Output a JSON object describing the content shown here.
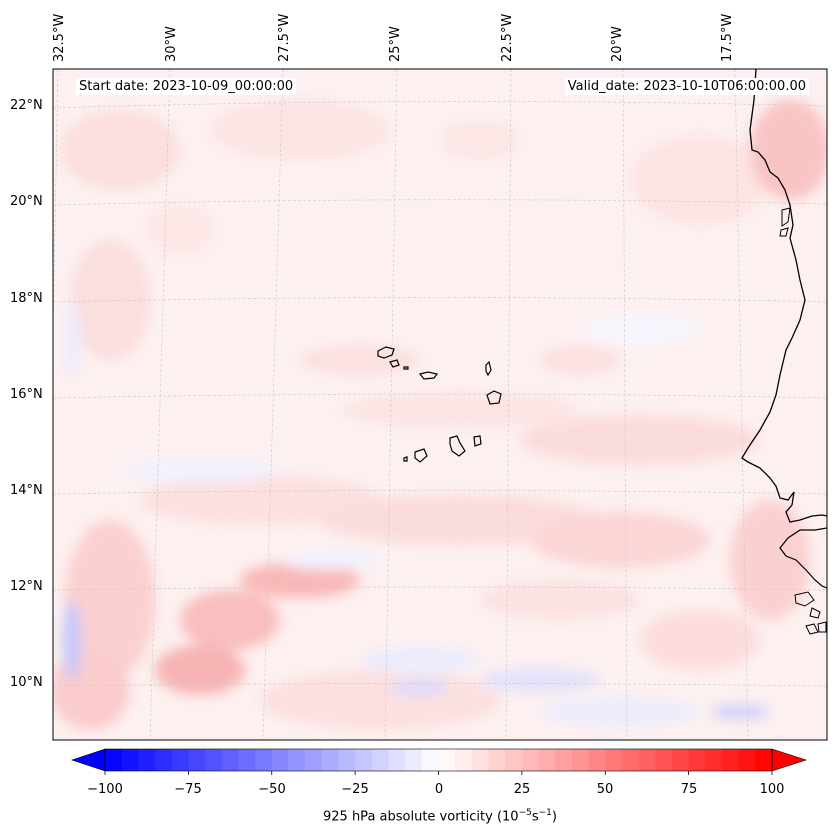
{
  "header": {
    "start_date": "Start date: 2023-10-09_00:00:00",
    "valid_date": "Valid_date: 2023-10-10T06:00:00.00"
  },
  "map": {
    "variable": "925 hPa absolute vorticity",
    "region": "Eastern tropical Atlantic / Cabo Verde",
    "lat_labels": [
      "22°N",
      "20°N",
      "18°N",
      "16°N",
      "14°N",
      "12°N",
      "10°N"
    ],
    "lon_labels": [
      "32.5°W",
      "30°W",
      "27.5°W",
      "25°W",
      "22.5°W",
      "20°W",
      "17.5°W"
    ]
  },
  "colorbar": {
    "label": "925 hPa absolute vorticity (10",
    "label_exp": "−5",
    "label_unit": "s",
    "label_exp2": "−1",
    "label_end": ")",
    "min": -100,
    "max": 100,
    "ticks": [
      "−100",
      "−75",
      "−50",
      "−25",
      "0",
      "25",
      "50",
      "75",
      "100"
    ],
    "colormap": "bwr",
    "extend": "both"
  },
  "colors": {
    "negative": "#0000ff",
    "neutral": "#ffffff",
    "positive": "#ff0000",
    "coastline": "#000000",
    "gridline": "#cccccc"
  }
}
